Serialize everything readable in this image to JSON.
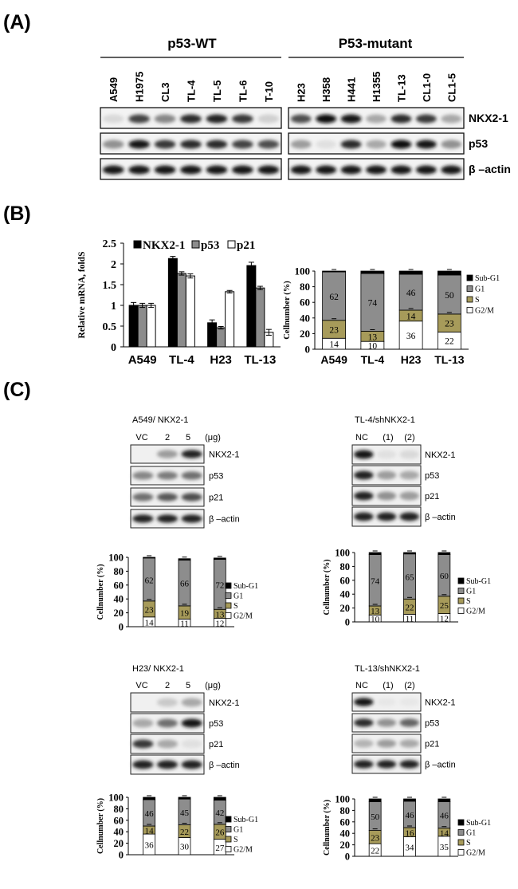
{
  "panels": {
    "a": "(A)",
    "b": "(B)",
    "c": "(C)"
  },
  "panel_a": {
    "group_wt": "p53-WT",
    "group_mut": "P53-mutant",
    "lanes_wt": [
      "A549",
      "H1975",
      "CL3",
      "TL-4",
      "TL-5",
      "TL-6",
      "T-10"
    ],
    "lanes_mut": [
      "H23",
      "H358",
      "H441",
      "H1355",
      "TL-13",
      "CL1-0",
      "CL1-5"
    ],
    "rows": [
      "NKX2-1",
      "p53",
      "β –actin"
    ],
    "intensity": {
      "nkx_wt": [
        0.08,
        0.75,
        0.45,
        0.85,
        0.9,
        0.8,
        0.12
      ],
      "p53_wt": [
        0.4,
        0.95,
        0.8,
        0.85,
        0.85,
        0.75,
        0.7
      ],
      "actin_wt": [
        0.95,
        0.95,
        0.95,
        0.95,
        0.95,
        0.95,
        0.95
      ],
      "nkx_mut": [
        0.7,
        1.0,
        0.95,
        0.3,
        0.85,
        0.8,
        0.3
      ],
      "p53_mut": [
        0.35,
        0.05,
        0.85,
        0.3,
        1.0,
        0.95,
        0.4
      ],
      "actin_mut": [
        0.95,
        0.95,
        0.95,
        0.95,
        0.95,
        0.95,
        0.95
      ]
    }
  },
  "chart_data": [
    {
      "type": "bar",
      "title": "",
      "ylabel": "Relative mRNA, foldS",
      "categories": [
        "A549",
        "TL-4",
        "H23",
        "TL-13"
      ],
      "ylim": [
        0,
        2.5
      ],
      "yticks": [
        "0",
        "0.5",
        "1",
        "1.5",
        "2",
        "2.5"
      ],
      "series": [
        {
          "name": "NKX2-1",
          "color": "#000000",
          "values": [
            1.0,
            2.13,
            0.58,
            1.96
          ],
          "err": [
            0.07,
            0.05,
            0.07,
            0.08
          ]
        },
        {
          "name": "p53",
          "color": "#8c8c8c",
          "values": [
            1.0,
            1.77,
            0.46,
            1.42
          ],
          "err": [
            0.05,
            0.04,
            0.03,
            0.04
          ]
        },
        {
          "name": "p21",
          "color": "#ffffff",
          "values": [
            1.0,
            1.71,
            1.33,
            0.35
          ],
          "err": [
            0.05,
            0.05,
            0.03,
            0.07
          ]
        }
      ]
    },
    {
      "type": "bar",
      "stacked": true,
      "ylabel": "Cellnumber (%)",
      "categories": [
        "A549",
        "TL-4",
        "H23",
        "TL-13"
      ],
      "ylim": [
        0,
        100
      ],
      "yticks": [
        "0",
        "20",
        "40",
        "60",
        "80",
        "100"
      ],
      "legend": [
        "Sub-G1",
        "G1",
        "S",
        "G2/M"
      ],
      "series": [
        {
          "name": "G2/M",
          "values": [
            14,
            10,
            36,
            22
          ]
        },
        {
          "name": "S",
          "values": [
            23,
            13,
            14,
            23
          ]
        },
        {
          "name": "G1",
          "values": [
            62,
            74,
            46,
            50
          ]
        },
        {
          "name": "Sub-G1",
          "values": [
            1,
            3,
            4,
            5
          ]
        }
      ],
      "labels": {
        "g2m": [
          "14",
          "10",
          "36",
          "22"
        ],
        "s": [
          "23",
          "13",
          "14",
          "23"
        ],
        "g1": [
          "62",
          "74",
          "46",
          "50"
        ]
      }
    },
    {
      "type": "bar",
      "stacked": true,
      "ylabel": "Cellnumber (%)",
      "categories": [
        "",
        "",
        ""
      ],
      "ylim": [
        0,
        100
      ],
      "yticks": [
        "0",
        "20",
        "40",
        "60",
        "80",
        "100"
      ],
      "legend": [
        "Sub-G1",
        "G1",
        "S",
        "G2/M"
      ],
      "series": [
        {
          "name": "G2/M",
          "values": [
            14,
            11,
            12
          ]
        },
        {
          "name": "S",
          "values": [
            23,
            19,
            13
          ]
        },
        {
          "name": "G1",
          "values": [
            62,
            66,
            72
          ]
        },
        {
          "name": "Sub-G1",
          "values": [
            1,
            2,
            2
          ]
        }
      ],
      "labels": {
        "g2m": [
          "14",
          "11",
          "12"
        ],
        "s": [
          "23",
          "19",
          "13"
        ],
        "g1": [
          "62",
          "66",
          "72"
        ]
      }
    },
    {
      "type": "bar",
      "stacked": true,
      "ylabel": "Cellnumber (%)",
      "categories": [
        "",
        "",
        ""
      ],
      "ylim": [
        0,
        100
      ],
      "yticks": [
        "0",
        "20",
        "40",
        "60",
        "80",
        "100"
      ],
      "legend": [
        "Sub-G1",
        "G1",
        "S",
        "G2/M"
      ],
      "series": [
        {
          "name": "G2/M",
          "values": [
            10,
            11,
            12
          ]
        },
        {
          "name": "S",
          "values": [
            13,
            22,
            25
          ]
        },
        {
          "name": "G1",
          "values": [
            74,
            65,
            60
          ]
        },
        {
          "name": "Sub-G1",
          "values": [
            3,
            2,
            3
          ]
        }
      ],
      "labels": {
        "g2m": [
          "10",
          "11",
          "12"
        ],
        "s": [
          "13",
          "22",
          "25"
        ],
        "g1": [
          "74",
          "65",
          "60"
        ]
      }
    },
    {
      "type": "bar",
      "stacked": true,
      "ylabel": "Cellnumber (%)",
      "categories": [
        "",
        "",
        ""
      ],
      "ylim": [
        0,
        100
      ],
      "yticks": [
        "0",
        "20",
        "40",
        "60",
        "80",
        "100"
      ],
      "legend": [
        "Sub-G1",
        "G1",
        "S",
        "G2/M"
      ],
      "series": [
        {
          "name": "G2/M",
          "values": [
            36,
            30,
            27
          ]
        },
        {
          "name": "S",
          "values": [
            14,
            22,
            26
          ]
        },
        {
          "name": "G1",
          "values": [
            46,
            45,
            42
          ]
        },
        {
          "name": "Sub-G1",
          "values": [
            4,
            3,
            5
          ]
        }
      ],
      "labels": {
        "g2m": [
          "36",
          "30",
          "27"
        ],
        "s": [
          "14",
          "22",
          "26"
        ],
        "g1": [
          "46",
          "45",
          "42"
        ]
      }
    },
    {
      "type": "bar",
      "stacked": true,
      "ylabel": "Cellnumber (%)",
      "categories": [
        "",
        "",
        ""
      ],
      "ylim": [
        0,
        100
      ],
      "yticks": [
        "0",
        "20",
        "40",
        "60",
        "80",
        "100"
      ],
      "legend": [
        "Sub-G1",
        "G1",
        "S",
        "G2/M"
      ],
      "series": [
        {
          "name": "G2/M",
          "values": [
            22,
            34,
            35
          ]
        },
        {
          "name": "S",
          "values": [
            23,
            16,
            14
          ]
        },
        {
          "name": "G1",
          "values": [
            50,
            46,
            46
          ]
        },
        {
          "name": "Sub-G1",
          "values": [
            5,
            4,
            5
          ]
        }
      ],
      "labels": {
        "g2m": [
          "22",
          "34",
          "35"
        ],
        "s": [
          "23",
          "16",
          "14"
        ],
        "g1": [
          "50",
          "46",
          "46"
        ]
      }
    }
  ],
  "panel_c": {
    "blots": [
      {
        "title": "A549/ NKX2-1",
        "lanes": [
          "VC",
          "2",
          "5",
          "(μg)"
        ],
        "rows": [
          "NKX2-1",
          "p53",
          "p21",
          "β –actin"
        ],
        "intensity": [
          [
            0.0,
            0.35,
            0.9
          ],
          [
            0.45,
            0.5,
            0.55
          ],
          [
            0.55,
            0.65,
            0.7
          ],
          [
            0.9,
            0.9,
            0.9
          ]
        ]
      },
      {
        "title": "TL-4/shNKX2-1",
        "lanes": [
          "NC",
          "(1)",
          "(2)"
        ],
        "rows": [
          "NKX2-1",
          "p53",
          "p21",
          "β –actin"
        ],
        "intensity": [
          [
            0.95,
            0.05,
            0.08
          ],
          [
            0.9,
            0.35,
            0.3
          ],
          [
            0.9,
            0.4,
            0.35
          ],
          [
            0.9,
            0.9,
            0.9
          ]
        ]
      },
      {
        "title": "H23/ NKX2-1",
        "lanes": [
          "VC",
          "2",
          "5",
          "(μg)"
        ],
        "rows": [
          "NKX2-1",
          "p53",
          "p21",
          "β –actin"
        ],
        "intensity": [
          [
            0.0,
            0.15,
            0.3
          ],
          [
            0.3,
            0.55,
            0.95
          ],
          [
            0.8,
            0.3,
            0.05
          ],
          [
            0.9,
            0.9,
            0.9
          ]
        ]
      },
      {
        "title": "TL-13/shNKX2-1",
        "lanes": [
          "NC",
          "(1)",
          "(2)"
        ],
        "rows": [
          "NKX2-1",
          "p53",
          "p21",
          "β –actin"
        ],
        "intensity": [
          [
            0.95,
            0.02,
            0.02
          ],
          [
            0.85,
            0.4,
            0.6
          ],
          [
            0.25,
            0.35,
            0.3
          ],
          [
            0.9,
            0.9,
            0.9
          ]
        ]
      }
    ]
  }
}
